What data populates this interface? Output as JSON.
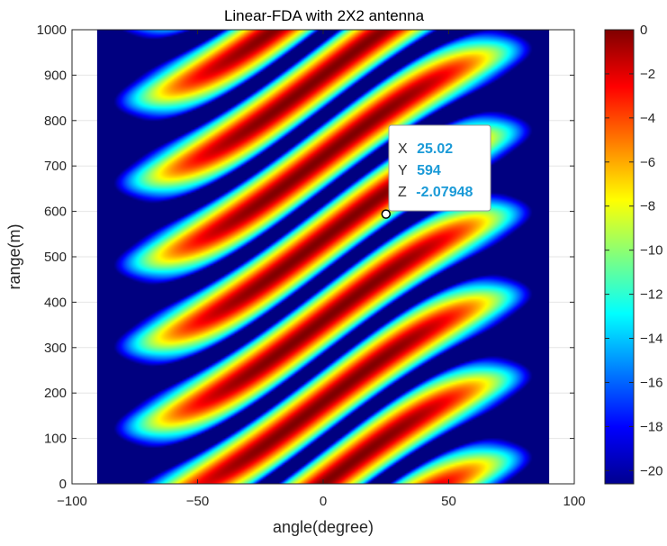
{
  "chart_data": {
    "type": "heatmap",
    "title": "Linear-FDA with 2X2 antenna",
    "xlabel": "angle(degree)",
    "ylabel": "range(m)",
    "xlim": [
      -100,
      100
    ],
    "ylim": [
      0,
      1000
    ],
    "data_x_range": [
      -90,
      90
    ],
    "data_y_range": [
      0,
      1000
    ],
    "x_ticks": [
      -100,
      -50,
      0,
      50,
      100
    ],
    "y_ticks": [
      0,
      100,
      200,
      300,
      400,
      500,
      600,
      700,
      800,
      900,
      1000
    ],
    "colorbar": {
      "range": [
        -20.6,
        0
      ],
      "ticks": [
        0,
        -2,
        -4,
        -6,
        -8,
        -10,
        -12,
        -14,
        -16,
        -18,
        -20
      ],
      "colormap": "jet"
    },
    "grid": true,
    "datatip": {
      "x": 25.02,
      "y": 594,
      "z": -2.07948,
      "x_key": "X",
      "y_key": "Y",
      "z_key": "Z",
      "x_text": "25.02",
      "y_text": "594",
      "z_text": "-2.07948"
    }
  },
  "colors": {
    "background": "#ffffff",
    "datatip_value": "#1a9ad7",
    "plot_floor": "#00008f"
  }
}
